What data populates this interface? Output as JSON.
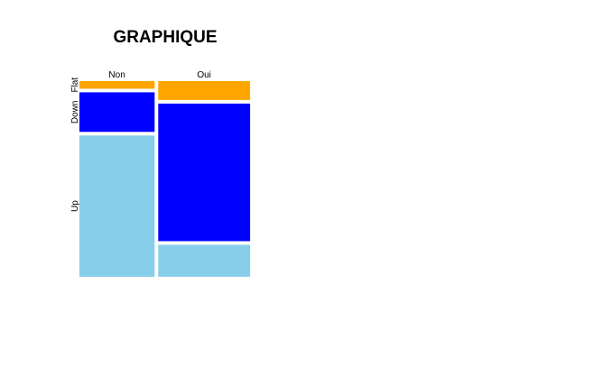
{
  "chart_data": {
    "type": "mosaic",
    "title": "GRAPHIQUE",
    "columns": [
      "Non",
      "Oui"
    ],
    "column_widths": [
      0.45,
      0.55
    ],
    "rows": [
      "Flat",
      "Down",
      "Up"
    ],
    "row_labels_shown": [
      "Flat",
      "Down",
      "Up"
    ],
    "proportions": {
      "Non": [
        0.04,
        0.21,
        0.75
      ],
      "Oui": [
        0.1,
        0.73,
        0.17
      ]
    },
    "colors": {
      "Flat": "#FFA500",
      "Down": "#0000FF",
      "Up": "#87CEEB"
    }
  }
}
